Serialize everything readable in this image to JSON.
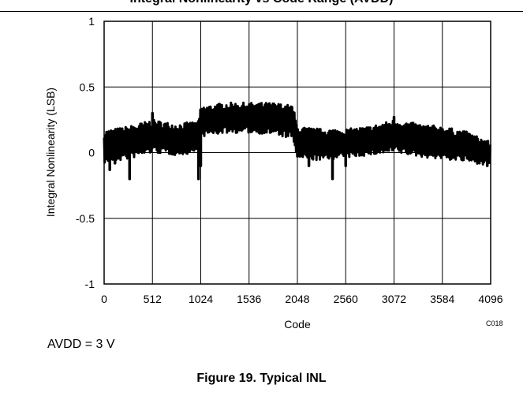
{
  "page": {
    "top_banner": "Integral Nonlinearity vs Code Range (AVDD)",
    "caption": "AVDD = 3 V",
    "figure_title": "Figure 19. Typical INL"
  },
  "chart_data": {
    "type": "line",
    "title": "",
    "xlabel": "Code",
    "ylabel": "Integral Nonlinearity (LSB)",
    "chart_id": "C018",
    "xlim": [
      0,
      4096
    ],
    "ylim": [
      -1,
      1
    ],
    "xticks": [
      0,
      512,
      1024,
      1536,
      2048,
      2560,
      3072,
      3584,
      4096
    ],
    "yticks": [
      1,
      0.5,
      0,
      -0.5,
      -1
    ],
    "ytick_labels": [
      "1",
      "0.5",
      "0",
      "-0.5",
      "-1"
    ],
    "grid": true,
    "series": [
      {
        "color": "#000000",
        "envelope": {
          "x": [
            0,
            256,
            512,
            768,
            1000,
            1024,
            1280,
            1536,
            1792,
            2000,
            2048,
            2304,
            2560,
            2816,
            3072,
            3328,
            3584,
            3840,
            4096
          ],
          "high": [
            0.17,
            0.2,
            0.25,
            0.22,
            0.24,
            0.35,
            0.38,
            0.38,
            0.38,
            0.36,
            0.2,
            0.18,
            0.18,
            0.2,
            0.25,
            0.22,
            0.2,
            0.16,
            0.08
          ],
          "low": [
            -0.08,
            -0.05,
            0.0,
            -0.02,
            0.0,
            0.12,
            0.15,
            0.15,
            0.14,
            0.1,
            -0.05,
            -0.06,
            -0.04,
            -0.02,
            0.0,
            -0.03,
            -0.05,
            -0.07,
            -0.1
          ]
        },
        "spikes": [
          {
            "x": 60,
            "y": -0.13
          },
          {
            "x": 115,
            "y": -0.08
          },
          {
            "x": 270,
            "y": -0.2
          },
          {
            "x": 512,
            "y": 0.3
          },
          {
            "x": 1000,
            "y": -0.2
          },
          {
            "x": 1024,
            "y": -0.1
          },
          {
            "x": 2170,
            "y": -0.1
          },
          {
            "x": 2420,
            "y": -0.2
          },
          {
            "x": 2560,
            "y": -0.1
          },
          {
            "x": 3072,
            "y": 0.27
          },
          {
            "x": 4060,
            "y": -0.1
          }
        ]
      }
    ]
  }
}
